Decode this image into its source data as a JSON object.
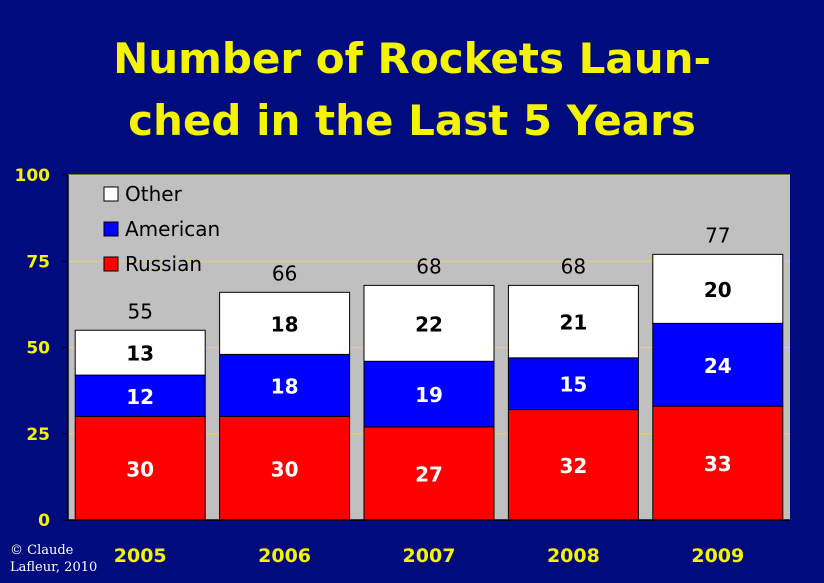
{
  "title": {
    "line1": "Number of Rockets Laun-",
    "line2": "ched in the Last 5 Years"
  },
  "copyright": {
    "line1": "© Claude",
    "line2": "Lafleur, 2010"
  },
  "colors": {
    "background": "#000c7e",
    "title": "#f4f400",
    "plot_area": "#c0c0c0",
    "gridline": "#e8e800",
    "axis_labels": "#f4f400",
    "russian": "#ff0000",
    "american": "#0000ff",
    "other": "#ffffff"
  },
  "chart_data": {
    "type": "bar",
    "stacked": true,
    "categories": [
      "2005",
      "2006",
      "2007",
      "2008",
      "2009"
    ],
    "series": [
      {
        "name": "Russian",
        "values": [
          30,
          30,
          27,
          32,
          33
        ]
      },
      {
        "name": "American",
        "values": [
          12,
          18,
          19,
          15,
          24
        ]
      },
      {
        "name": "Other",
        "values": [
          13,
          18,
          22,
          21,
          20
        ]
      }
    ],
    "totals": [
      55,
      66,
      68,
      68,
      77
    ],
    "ylim": [
      0,
      100
    ],
    "yticks": [
      0,
      25,
      50,
      75,
      100
    ],
    "xlabel": "",
    "ylabel": "",
    "grid": true,
    "legend_position": "top-left"
  }
}
